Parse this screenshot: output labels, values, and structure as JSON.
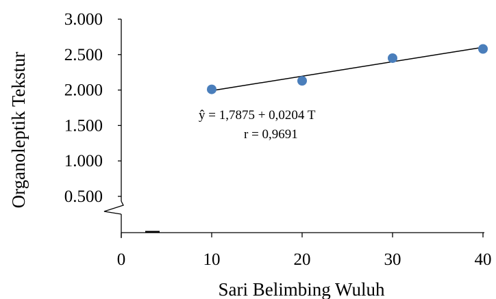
{
  "chart_data": {
    "type": "scatter",
    "title": "",
    "xlabel": "Sari Belimbing  Wuluh",
    "ylabel": "Organoleptik Tekstur",
    "x_ticks": [
      0,
      10,
      20,
      30,
      40
    ],
    "x_tick_labels": [
      "0",
      "10",
      "20",
      "30",
      "40"
    ],
    "y_ticks": [
      0.5,
      1.0,
      1.5,
      2.0,
      2.5,
      3.0
    ],
    "y_tick_labels": [
      "0.500",
      "1.000",
      "1.500",
      "2.000",
      "2.500",
      "3.000"
    ],
    "xlim": [
      0,
      40
    ],
    "ylim": [
      0.5,
      3.0
    ],
    "y_axis_break": true,
    "grid": false,
    "legend": "none",
    "series": [
      {
        "x": [
          10,
          20,
          30,
          40
        ],
        "y": [
          2.01,
          2.13,
          2.45,
          2.58
        ],
        "color": "#4a7ebb"
      }
    ],
    "trendline": {
      "type": "linear",
      "intercept": 1.7875,
      "slope": 0.0204,
      "x_range": [
        10,
        40
      ],
      "color": "#000000"
    },
    "annotations": [
      "ŷ = 1,7875  + 0,0204 T",
      "r = 0,9691"
    ]
  }
}
